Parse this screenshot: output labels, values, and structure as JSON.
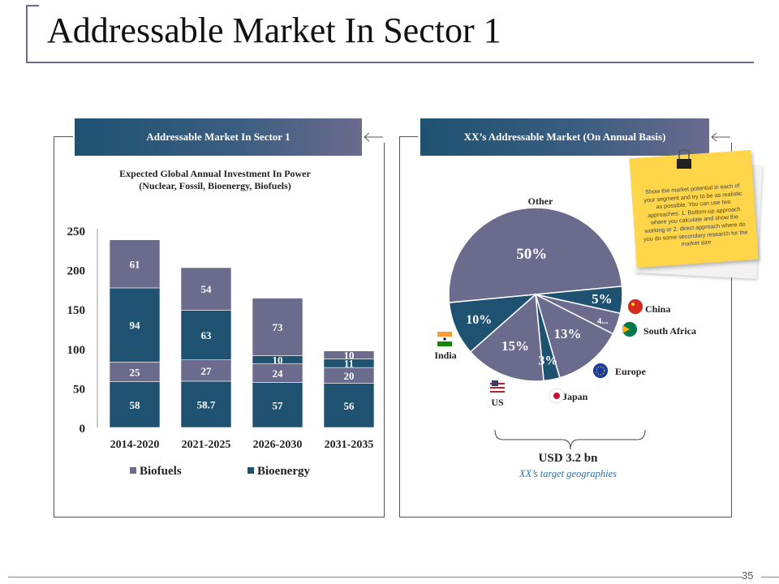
{
  "page": {
    "title": "Addressable Market In Sector 1",
    "page_number": "35"
  },
  "left_panel": {
    "header": "Addressable Market In Sector 1",
    "subtitle_line1": "Expected Global Annual Investment In Power",
    "subtitle_line2": "(Nuclear, Fossil, Bioenergy, Biofuels)"
  },
  "right_panel": {
    "header": "XX’s Addressable Market (On Annual Basis)",
    "total": "USD 3.2 bn",
    "caption": "XX’s target geographies",
    "note": "Show the market potential in each of your segment and try to be as realistic as possible. You can use two approaches: 1. Bottom-up approach where you calculate and show the working or 2. direct approach where do you do some secondary research for the market size"
  },
  "colors": {
    "biofuels": "#6b6b8e",
    "bioenergy": "#1e5270",
    "header_left": "#1e5270",
    "header_right": "#1e5270"
  },
  "chart_data": [
    {
      "type": "bar",
      "stacked": true,
      "categories": [
        "2014-2020",
        "2021-2025",
        "2026-2030",
        "2031-2035"
      ],
      "series": [
        {
          "name": "Bioenergy",
          "values": [
            58,
            58.7,
            57,
            56
          ],
          "labels": [
            "58",
            "58.7",
            "57",
            "56"
          ]
        },
        {
          "name": "Biofuels",
          "values": [
            25,
            27,
            24,
            20
          ],
          "labels": [
            "25",
            "27",
            "24",
            "20"
          ]
        },
        {
          "name": "Bioenergy",
          "values": [
            94,
            63,
            10,
            11
          ],
          "labels": [
            "94",
            "63",
            "10",
            "11"
          ]
        },
        {
          "name": "Biofuels",
          "values": [
            61,
            54,
            73,
            10
          ],
          "labels": [
            "61",
            "54",
            "73",
            "10"
          ]
        }
      ],
      "legend": [
        "Biofuels",
        "Bioenergy"
      ],
      "yticks": [
        "0",
        "50",
        "100",
        "150",
        "200",
        "250"
      ],
      "ylim": [
        0,
        250
      ],
      "title": "Expected Global Annual Investment In Power (Nuclear, Fossil, Bioenergy, Biofuels)"
    },
    {
      "type": "pie",
      "slices": [
        {
          "name": "Other",
          "value": 50,
          "label": "50%"
        },
        {
          "name": "China",
          "value": 5,
          "label": "5%"
        },
        {
          "name": "South Africa",
          "value": 4,
          "label": "4..."
        },
        {
          "name": "Europe",
          "value": 13,
          "label": "13%"
        },
        {
          "name": "Japan",
          "value": 3,
          "label": "3%"
        },
        {
          "name": "US",
          "value": 15,
          "label": "15%"
        },
        {
          "name": "India",
          "value": 10,
          "label": "10%"
        }
      ],
      "country_labels": [
        "Other",
        "China",
        "South Africa",
        "Europe",
        "Japan",
        "US",
        "India"
      ]
    }
  ]
}
